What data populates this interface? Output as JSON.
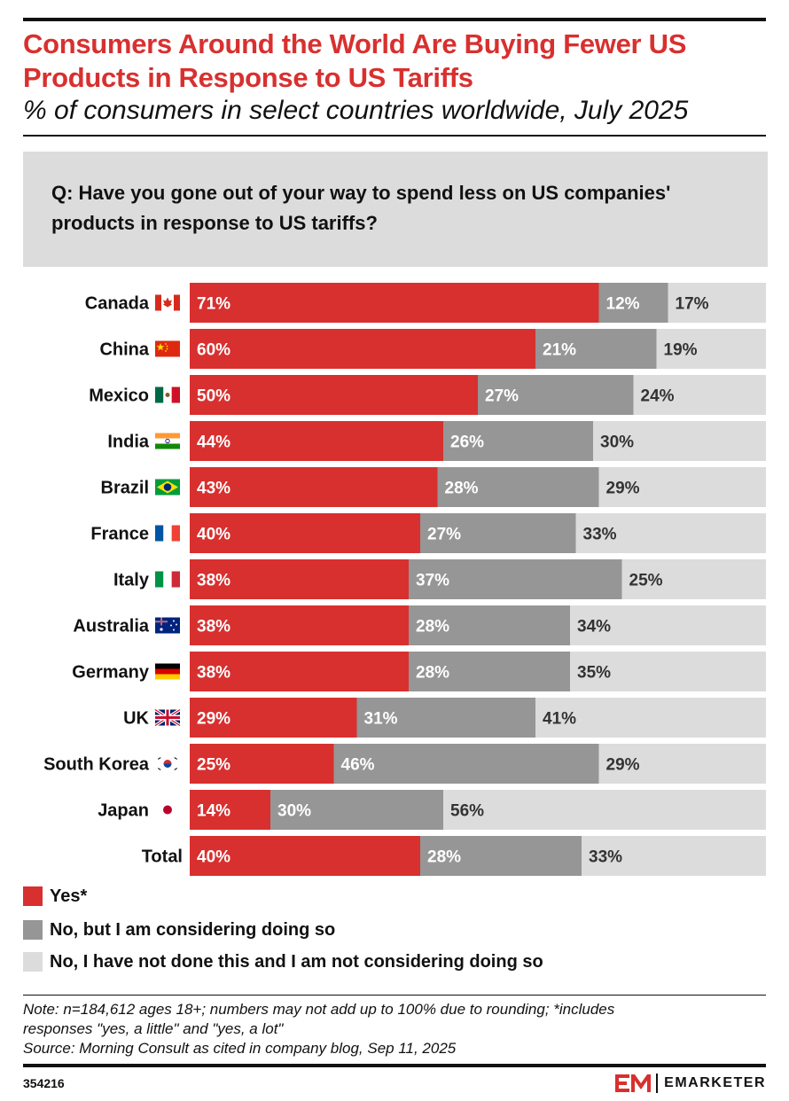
{
  "header": {
    "title": "Consumers Around the World Are Buying Fewer US Products in Response to US Tariffs",
    "subtitle": "% of consumers in select countries worldwide, July 2025",
    "question": "Q: Have you gone out of your way to spend less on US companies' products in response to US tariffs?"
  },
  "colors": {
    "yes": "#d8302f",
    "considering": "#969696",
    "not": "#dcdcdc",
    "title": "#d8302f"
  },
  "chart_data": {
    "type": "bar",
    "orientation": "horizontal",
    "stacked": true,
    "percent_stacked": true,
    "title": "Consumers Around the World Are Buying Fewer US Products in Response to US Tariffs",
    "subtitle": "% of consumers in select countries worldwide, July 2025",
    "categories": [
      "Canada",
      "China",
      "Mexico",
      "India",
      "Brazil",
      "France",
      "Italy",
      "Australia",
      "Germany",
      "UK",
      "South Korea",
      "Japan",
      "Total"
    ],
    "flags": [
      "canada-flag",
      "china-flag",
      "mexico-flag",
      "india-flag",
      "brazil-flag",
      "france-flag",
      "italy-flag",
      "australia-flag",
      "germany-flag",
      "uk-flag",
      "south-korea-flag",
      "japan-flag",
      ""
    ],
    "series": [
      {
        "name": "Yes*",
        "color": "#d8302f",
        "values": [
          71,
          60,
          50,
          44,
          43,
          40,
          38,
          38,
          38,
          29,
          25,
          14,
          40
        ]
      },
      {
        "name": "No, but I am considering doing so",
        "color": "#969696",
        "values": [
          12,
          21,
          27,
          26,
          28,
          27,
          37,
          28,
          28,
          31,
          46,
          30,
          28
        ]
      },
      {
        "name": "No, I have not done this and I am not considering doing so",
        "color": "#dcdcdc",
        "values": [
          17,
          19,
          24,
          30,
          29,
          33,
          25,
          34,
          35,
          41,
          29,
          56,
          33
        ]
      }
    ],
    "value_suffix": "%",
    "xlim": [
      0,
      100
    ],
    "grid": false,
    "legend": "bottom-left"
  },
  "legend": {
    "items": [
      {
        "label": "Yes*",
        "color": "#d8302f"
      },
      {
        "label": "No, but I am considering doing so",
        "color": "#969696"
      },
      {
        "label": "No, I have not done this and I am not considering doing so",
        "color": "#dcdcdc"
      }
    ]
  },
  "footer": {
    "note_line1": "Note: n=184,612 ages 18+; numbers may not add up to 100% due to rounding; *includes",
    "note_line2": "responses \"yes, a little\" and \"yes, a lot\"",
    "source": "Source: Morning Consult as cited in company blog, Sep 11, 2025",
    "chart_id": "354216",
    "brand": "EMARKETER"
  }
}
